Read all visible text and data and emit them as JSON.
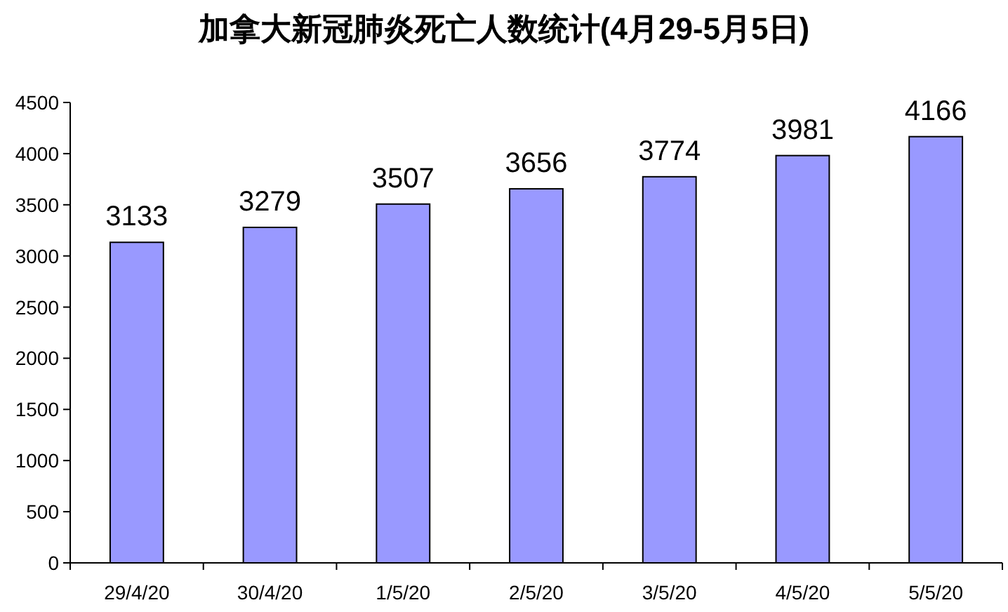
{
  "chart_data": {
    "type": "bar",
    "title": "加拿大新冠肺炎死亡人数统计(4月29-5月5日)",
    "categories": [
      "29/4/20",
      "30/4/20",
      "1/5/20",
      "2/5/20",
      "3/5/20",
      "4/5/20",
      "5/5/20"
    ],
    "values": [
      3133,
      3279,
      3507,
      3656,
      3774,
      3981,
      4166
    ],
    "color": "#9999ff",
    "ylim": [
      0,
      4500
    ],
    "yticks": [
      0,
      500,
      1000,
      1500,
      2000,
      2500,
      3000,
      3500,
      4000,
      4500
    ],
    "data_labels": true,
    "grid": false
  }
}
